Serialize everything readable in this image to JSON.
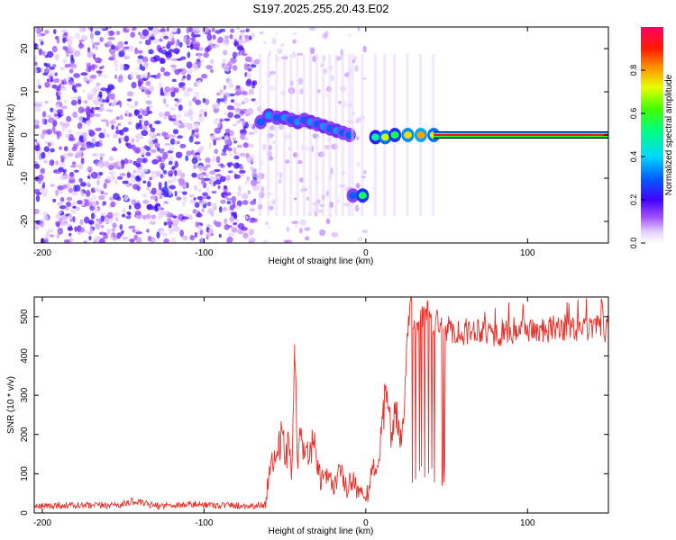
{
  "title": "S197.2025.255.20.43.E02",
  "chart_data": [
    {
      "type": "heatmap",
      "title": "S197.2025.255.20.43.E02",
      "xlabel": "Height of straight line (km)",
      "ylabel": "Frequency (Hz)",
      "xlim": [
        -205,
        150
      ],
      "ylim": [
        -25,
        25
      ],
      "xticks": [
        -200,
        -100,
        0,
        100
      ],
      "yticks": [
        -20,
        -10,
        0,
        10,
        20
      ],
      "regions": [
        {
          "name": "noise",
          "x_range": [
            -205,
            -68
          ],
          "freq_range": [
            -25,
            25
          ]
        },
        {
          "name": "sparse",
          "x_range": [
            -68,
            0
          ],
          "freq_range": [
            -25,
            25
          ]
        }
      ],
      "peaks": [
        {
          "x": -65,
          "f": 3.0,
          "amp": 0.3
        },
        {
          "x": -60,
          "f": 4.5,
          "amp": 0.35
        },
        {
          "x": -55,
          "f": 4.0,
          "amp": 0.3
        },
        {
          "x": -50,
          "f": 4.0,
          "amp": 0.35
        },
        {
          "x": -46,
          "f": 3.5,
          "amp": 0.3
        },
        {
          "x": -42,
          "f": 3.0,
          "amp": 0.35
        },
        {
          "x": -38,
          "f": 3.5,
          "amp": 0.3
        },
        {
          "x": -34,
          "f": 3.0,
          "amp": 0.35
        },
        {
          "x": -30,
          "f": 2.5,
          "amp": 0.3
        },
        {
          "x": -26,
          "f": 2.0,
          "amp": 0.35
        },
        {
          "x": -22,
          "f": 1.5,
          "amp": 0.3
        },
        {
          "x": -18,
          "f": 1.0,
          "amp": 0.35
        },
        {
          "x": -14,
          "f": 0.5,
          "amp": 0.3
        },
        {
          "x": -10,
          "f": 0.0,
          "amp": 0.3
        },
        {
          "x": -8,
          "f": -14.0,
          "amp": 0.3
        },
        {
          "x": -2,
          "f": -14.0,
          "amp": 0.55
        },
        {
          "x": 6,
          "f": -0.5,
          "amp": 0.5
        },
        {
          "x": 12,
          "f": -0.5,
          "amp": 0.7
        },
        {
          "x": 18,
          "f": 0.0,
          "amp": 0.55
        },
        {
          "x": 26,
          "f": 0.0,
          "amp": 0.75
        },
        {
          "x": 34,
          "f": 0.0,
          "amp": 0.8
        },
        {
          "x": 42,
          "f": 0.0,
          "amp": 0.7
        }
      ],
      "steady_line": {
        "x_range": [
          42,
          150
        ],
        "f": 0.0,
        "amp": 0.95
      },
      "colorbar": {
        "label": "Normalized spectral amplitude",
        "ticks": [
          0.0,
          0.2,
          0.4,
          0.6,
          0.8
        ],
        "tick_labels": [
          "0.0",
          "0.2",
          "0.4",
          "0.6",
          "0.8"
        ],
        "range": [
          0,
          1
        ]
      }
    },
    {
      "type": "line",
      "xlabel": "Height of straight line (km)",
      "ylabel": "SNR (10 * v/v)",
      "xlim": [
        -205,
        150
      ],
      "ylim": [
        0,
        550
      ],
      "xticks": [
        -200,
        -100,
        0,
        100
      ],
      "yticks": [
        0,
        100,
        200,
        300,
        400,
        500
      ],
      "color": "#e8302a",
      "series": [
        {
          "name": "SNR",
          "x": [
            -205,
            -190,
            -170,
            -150,
            -145,
            -130,
            -110,
            -90,
            -70,
            -62,
            -60,
            -58,
            -55,
            -52,
            -50,
            -48,
            -46,
            -45,
            -44,
            -42,
            -40,
            -36,
            -32,
            -30,
            -28,
            -24,
            -20,
            -16,
            -12,
            -8,
            -4,
            0,
            4,
            8,
            10,
            12,
            14,
            16,
            18,
            20,
            22,
            24,
            26,
            28,
            30,
            34,
            38,
            42,
            44,
            46,
            48,
            50,
            60,
            70,
            80,
            90,
            100,
            110,
            120,
            130,
            140,
            150
          ],
          "y": [
            15,
            20,
            18,
            22,
            30,
            18,
            22,
            20,
            18,
            22,
            90,
            160,
            120,
            200,
            140,
            170,
            110,
            230,
            395,
            130,
            200,
            150,
            170,
            120,
            80,
            90,
            70,
            110,
            60,
            90,
            50,
            30,
            110,
            130,
            200,
            300,
            250,
            200,
            280,
            220,
            180,
            260,
            480,
            520,
            460,
            490,
            510,
            470,
            500,
            460,
            480,
            470,
            460,
            470,
            455,
            465,
            470,
            460,
            475,
            465,
            470,
            468
          ]
        }
      ]
    }
  ]
}
